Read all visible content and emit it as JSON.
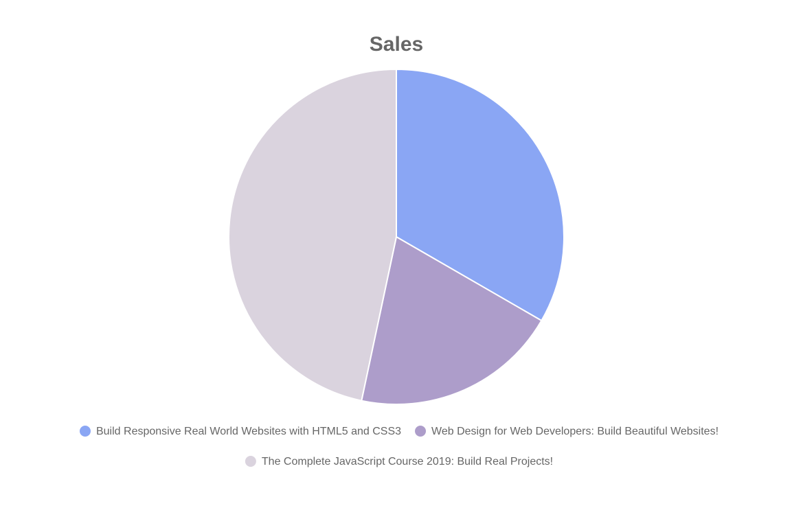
{
  "chart_data": {
    "type": "pie",
    "title": "Sales",
    "categories": [
      "Build Responsive Real World Websites with HTML5 and CSS3",
      "Web Design for Web Developers: Build Beautiful Websites!",
      "The Complete JavaScript Course 2019: Build Real Projects!"
    ],
    "values": [
      5,
      3,
      7
    ],
    "colors": [
      "#8aa6f4",
      "#ad9dca",
      "#dad3de"
    ],
    "legend": "bottom"
  }
}
